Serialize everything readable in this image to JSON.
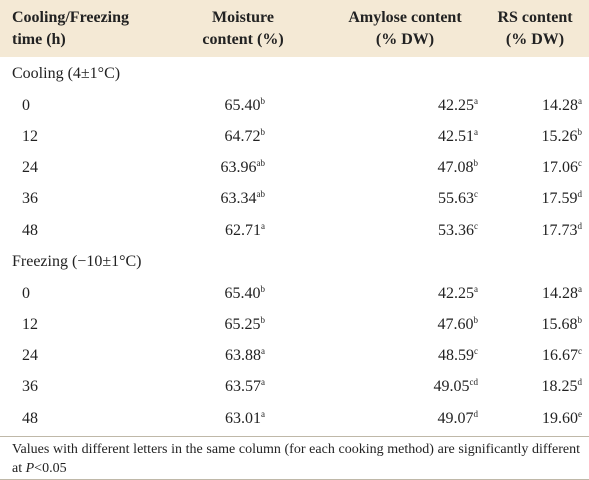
{
  "table": {
    "header": [
      [
        "Cooling/Freezing",
        "time (h)"
      ],
      [
        "Moisture",
        "content (%)"
      ],
      [
        "Amylose content",
        "(% DW)"
      ],
      [
        "RS content",
        "(% DW)"
      ]
    ],
    "sections": [
      {
        "title": "Cooling (4±1°C)",
        "rows": [
          {
            "time": "0",
            "cells": [
              {
                "value": "65.40",
                "sup": "b"
              },
              {
                "value": "42.25",
                "sup": "a"
              },
              {
                "value": "14.28",
                "sup": "a"
              }
            ]
          },
          {
            "time": "12",
            "cells": [
              {
                "value": "64.72",
                "sup": "b"
              },
              {
                "value": "42.51",
                "sup": "a"
              },
              {
                "value": "15.26",
                "sup": "b"
              }
            ]
          },
          {
            "time": "24",
            "cells": [
              {
                "value": "63.96",
                "sup": "ab"
              },
              {
                "value": "47.08",
                "sup": "b"
              },
              {
                "value": "17.06",
                "sup": "c"
              }
            ]
          },
          {
            "time": "36",
            "cells": [
              {
                "value": "63.34",
                "sup": "ab"
              },
              {
                "value": "55.63",
                "sup": "c"
              },
              {
                "value": "17.59",
                "sup": "d"
              }
            ]
          },
          {
            "time": "48",
            "cells": [
              {
                "value": "62.71",
                "sup": "a"
              },
              {
                "value": "53.36",
                "sup": "c"
              },
              {
                "value": "17.73",
                "sup": "d"
              }
            ]
          }
        ]
      },
      {
        "title": "Freezing (−10±1°C)",
        "rows": [
          {
            "time": "0",
            "cells": [
              {
                "value": "65.40",
                "sup": "b"
              },
              {
                "value": "42.25",
                "sup": "a"
              },
              {
                "value": "14.28",
                "sup": "a"
              }
            ]
          },
          {
            "time": "12",
            "cells": [
              {
                "value": "65.25",
                "sup": "b"
              },
              {
                "value": "47.60",
                "sup": "b"
              },
              {
                "value": "15.68",
                "sup": "b"
              }
            ]
          },
          {
            "time": "24",
            "cells": [
              {
                "value": "63.88",
                "sup": "a"
              },
              {
                "value": "48.59",
                "sup": "c"
              },
              {
                "value": "16.67",
                "sup": "c"
              }
            ]
          },
          {
            "time": "36",
            "cells": [
              {
                "value": "63.57",
                "sup": "a"
              },
              {
                "value": "49.05",
                "sup": "cd"
              },
              {
                "value": "18.25",
                "sup": "d"
              }
            ]
          },
          {
            "time": "48",
            "cells": [
              {
                "value": "63.01",
                "sup": "a"
              },
              {
                "value": "49.07",
                "sup": "d"
              },
              {
                "value": "19.60",
                "sup": "e"
              }
            ]
          }
        ]
      }
    ]
  },
  "footnote": {
    "text": "Values with different letters in the same column (for each cooking method) are significantly different at ",
    "italic": "P",
    "end": "<0.05"
  }
}
